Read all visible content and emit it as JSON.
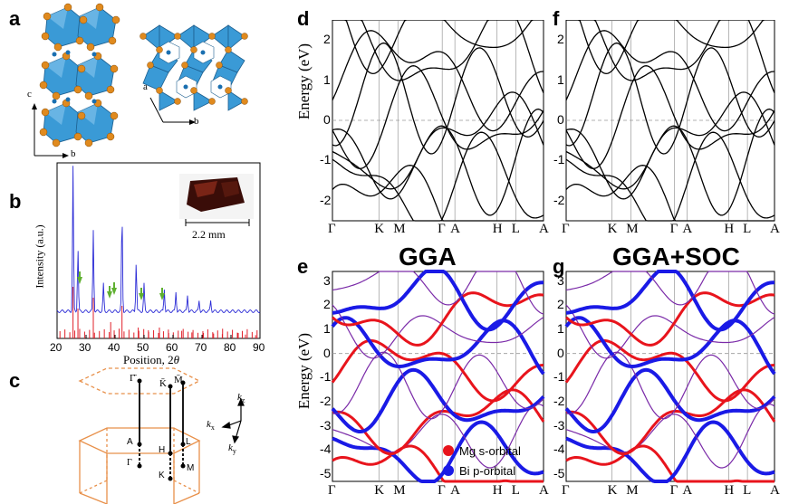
{
  "panels": {
    "a": "a",
    "b": "b",
    "c": "c",
    "d": "d",
    "e": "e",
    "f": "f",
    "g": "g"
  },
  "crystal": {
    "axis_c": "c",
    "axis_b1": "b",
    "axis_a": "a",
    "axis_b2": "b",
    "colors": {
      "octahedra": "#3a9ad6",
      "mg_atom": "#e08a1e",
      "bi_atom": "#1a6fb0"
    }
  },
  "xrd": {
    "ylabel": "Intensity (a.u.)",
    "xlabel": "Position, 2",
    "xlabel_theta": "θ",
    "xticks": [
      "20",
      "30",
      "40",
      "50",
      "60",
      "70",
      "80",
      "90"
    ],
    "scale_label": "2.2 mm",
    "colors": {
      "measured": "#2b2bd6",
      "reference": "#e0202a",
      "arrow": "#5fb030"
    }
  },
  "bz": {
    "kz": "k",
    "kz_sub": "z",
    "kx": "k",
    "kx_sub": "x",
    "ky": "k",
    "ky_sub": "y",
    "points": {
      "gamma_top": "Γ̄",
      "K_top": "K̄",
      "M_top": "M̄",
      "A": "A",
      "H": "H",
      "L": "L",
      "gamma": "Γ",
      "K": "K",
      "M": "M"
    },
    "color": "#e8904a"
  },
  "bands": {
    "ylabel": "Energy (eV)",
    "kpath": [
      "Γ",
      "K",
      "M",
      "Γ",
      "A",
      "H",
      "L",
      "A"
    ],
    "d_yticks": [
      "2",
      "1",
      "0",
      "-1",
      "-2"
    ],
    "e_yticks": [
      "3",
      "2",
      "1",
      "0",
      "-1",
      "-2",
      "-3",
      "-4",
      "-5"
    ],
    "title_gga": "GGA",
    "title_soc": "GGA+SOC",
    "legend": [
      {
        "label": "Mg s-orbital",
        "color": "#e8141c"
      },
      {
        "label": "Bi p-orbital",
        "color": "#1a1ae6"
      }
    ]
  }
}
